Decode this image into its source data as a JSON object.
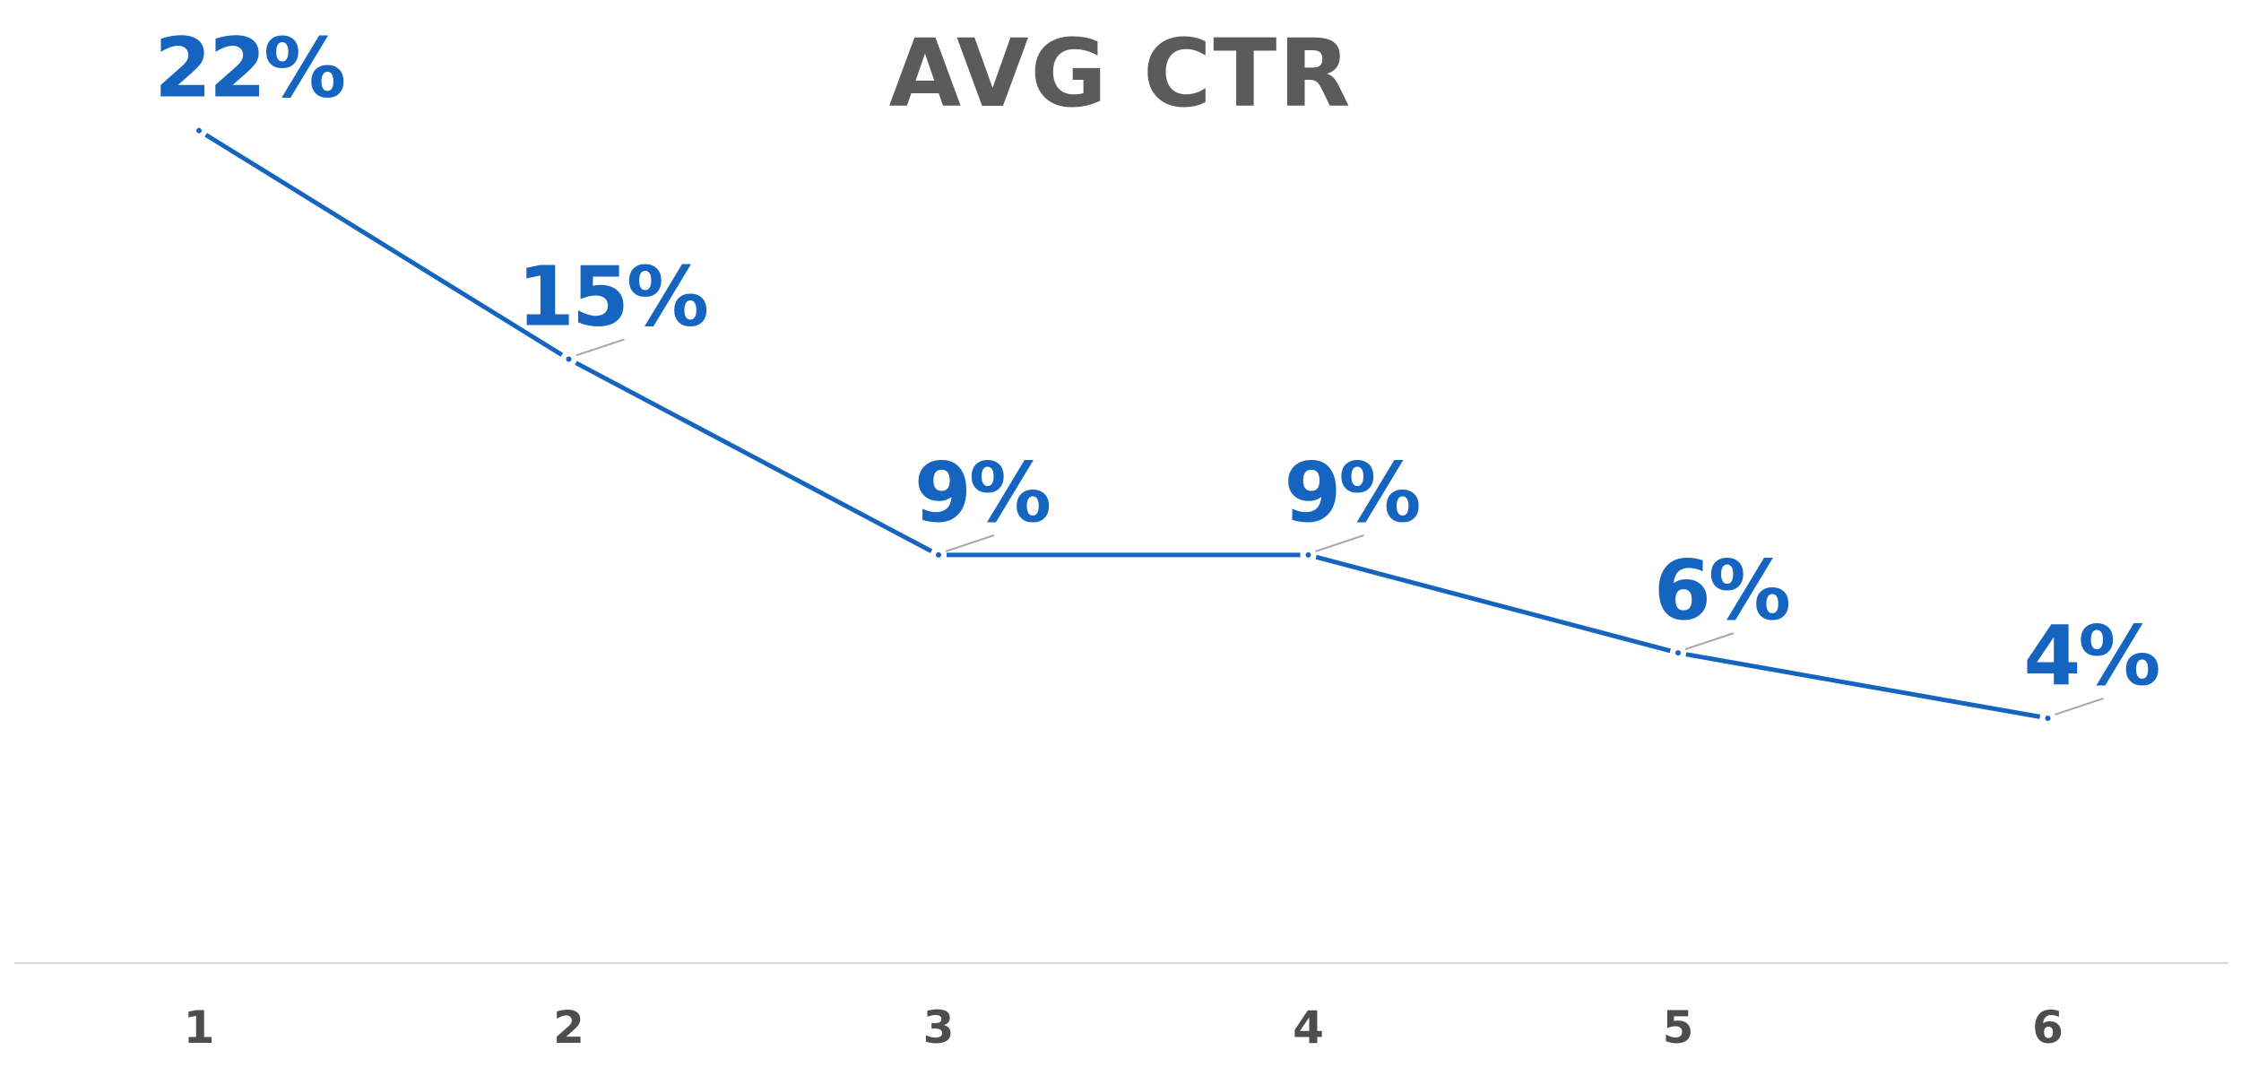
{
  "chart_data": {
    "type": "line",
    "title": "AVG CTR",
    "xlabel": "",
    "ylabel": "",
    "categories": [
      "1",
      "2",
      "3",
      "4",
      "5",
      "6"
    ],
    "series": [
      {
        "values": [
          22,
          15,
          9,
          9,
          6,
          4
        ],
        "labels": [
          "22%",
          "15%",
          "9%",
          "9%",
          "6%",
          "4%"
        ]
      }
    ],
    "ylim": [
      -3.5,
      26
    ],
    "value_suffix": "%",
    "grid": false,
    "legend": "none",
    "colors": {
      "line": "#1565c0",
      "labels": "#1565c0",
      "title": "#5b5b5b",
      "ticks": "#4d4d4d",
      "axis": "#d9d9d9",
      "leader": "#a6a6a6"
    }
  }
}
